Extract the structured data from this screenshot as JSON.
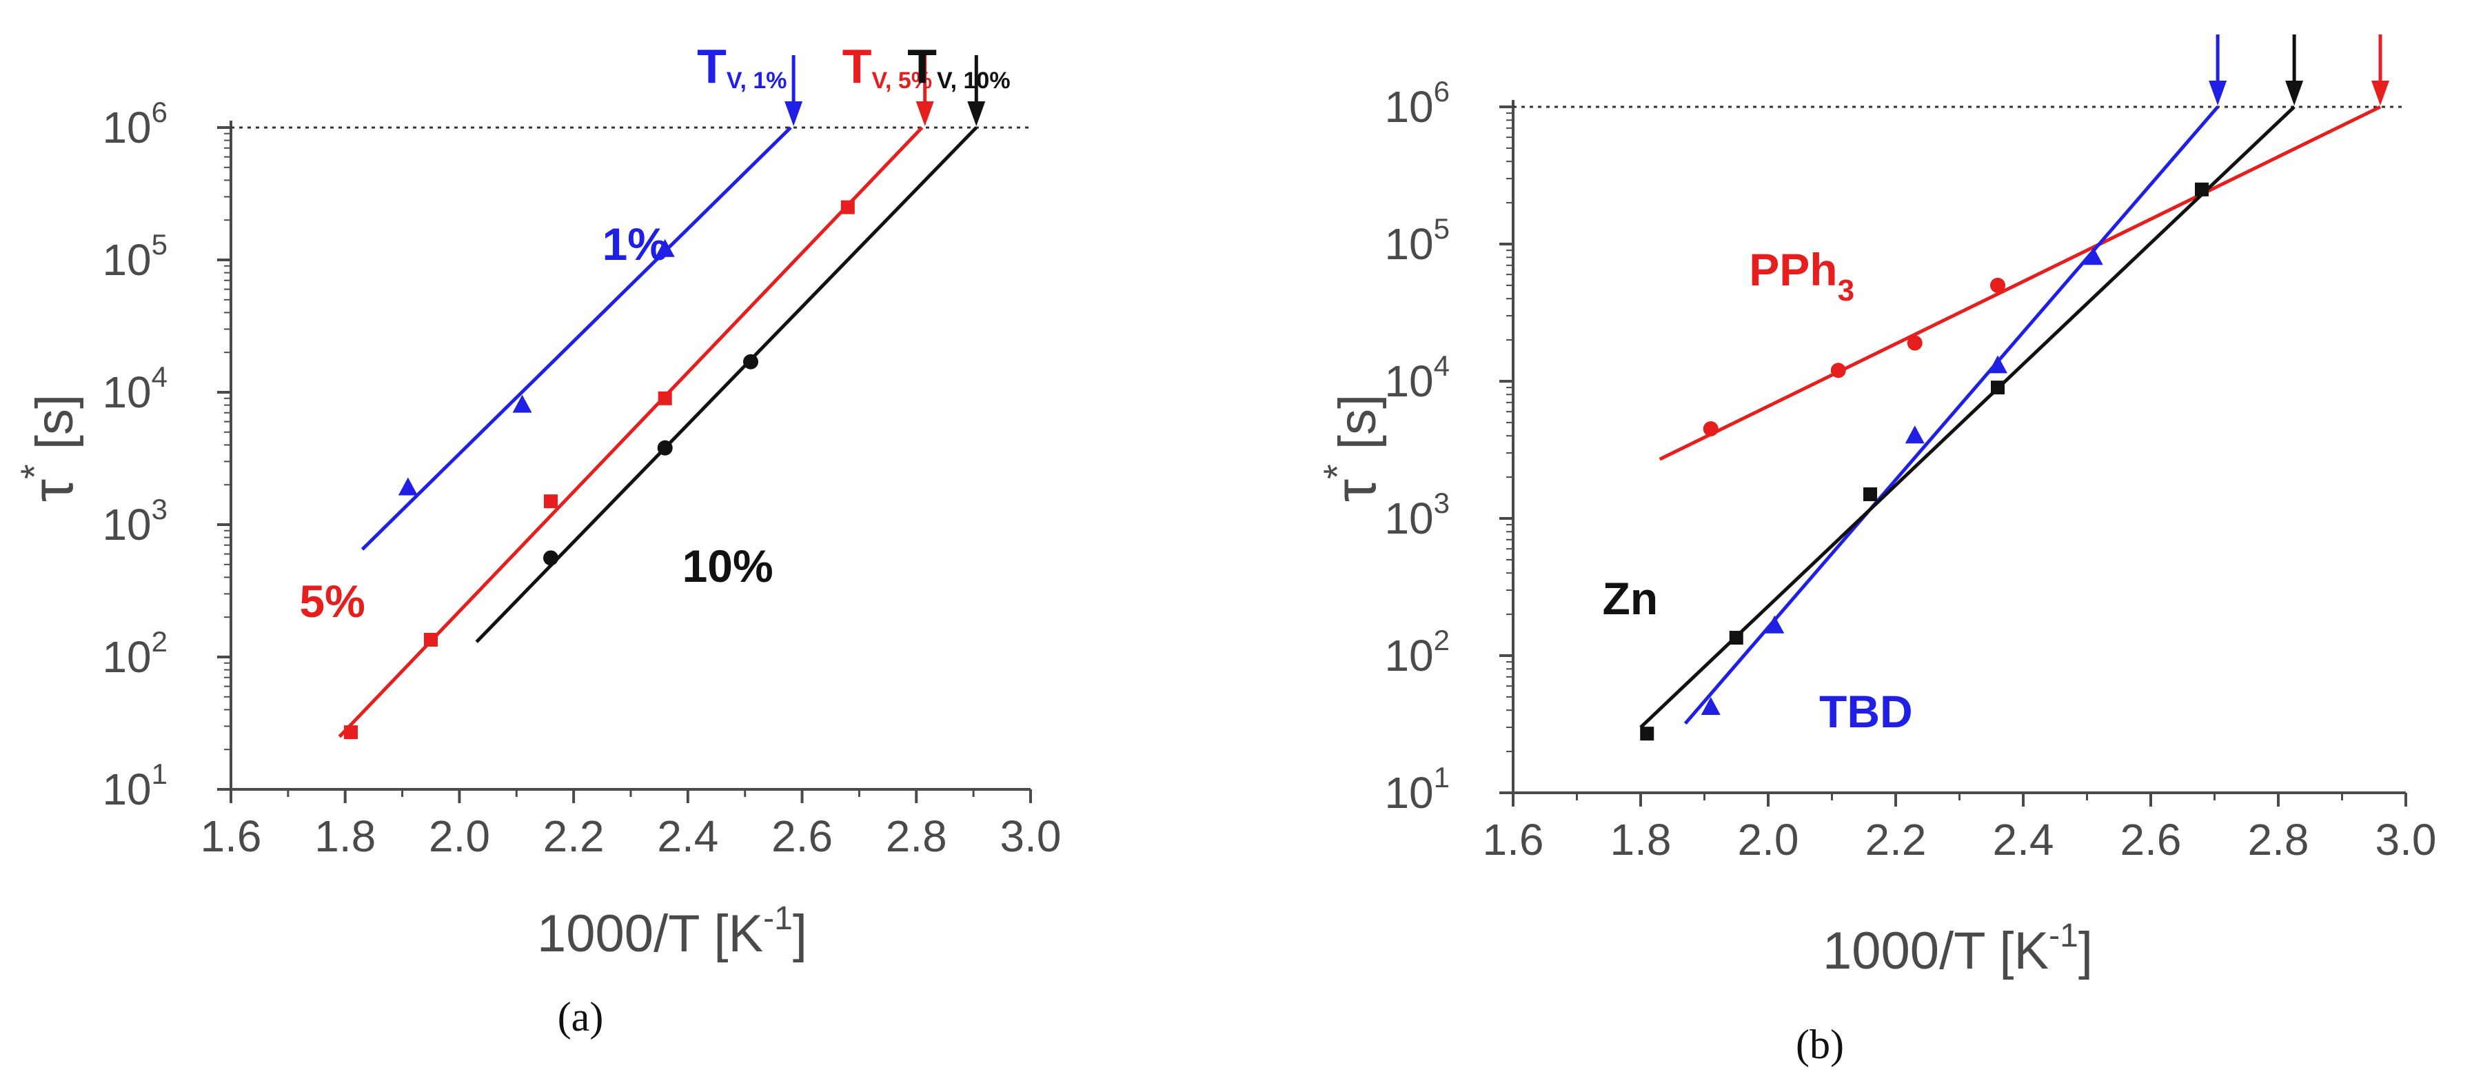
{
  "panels_caption": [
    "(a)",
    "(b)"
  ],
  "colors": {
    "blue": "#1f1fe6",
    "red": "#e61e1e",
    "black": "#111111",
    "axis": "#4a4a4a"
  },
  "chart_data": [
    {
      "type": "scatter",
      "panel": "(a)",
      "xlabel": "1000/T [K",
      "xlabel_sup": "-1",
      "xlabel_end": "]",
      "ylabel_sym": "τ",
      "ylabel_sup": "*",
      "ylabel_unit": "[s]",
      "xlim": [
        1.6,
        3.0
      ],
      "ylim_log10": [
        1,
        6
      ],
      "yscale": "log",
      "x_ticks": [
        "1.6",
        "1.8",
        "2.0",
        "2.2",
        "2.4",
        "2.6",
        "2.8",
        "3.0"
      ],
      "y_ticks": [
        {
          "base": "10",
          "exp": "1"
        },
        {
          "base": "10",
          "exp": "2"
        },
        {
          "base": "10",
          "exp": "3"
        },
        {
          "base": "10",
          "exp": "4"
        },
        {
          "base": "10",
          "exp": "5"
        },
        {
          "base": "10",
          "exp": "6"
        }
      ],
      "reference_line": {
        "y": 1000000,
        "style": "dotted"
      },
      "series": [
        {
          "name": "1%",
          "color": "#1f1fe6",
          "marker": "triangle",
          "points": [
            {
              "x": 1.91,
              "y": 1900
            },
            {
              "x": 2.11,
              "y": 8000
            },
            {
              "x": 2.36,
              "y": 120000
            }
          ],
          "fit": [
            {
              "x": 1.83,
              "y": 650
            },
            {
              "x": 2.58,
              "y": 1000000
            }
          ],
          "arrow_x": 2.585,
          "annotation": {
            "text": "1%",
            "x": 2.25,
            "y": 100000
          },
          "top_label": {
            "main": "T",
            "sub": "V, 1%"
          }
        },
        {
          "name": "5%",
          "color": "#e61e1e",
          "marker": "square",
          "points": [
            {
              "x": 1.81,
              "y": 27
            },
            {
              "x": 1.95,
              "y": 135
            },
            {
              "x": 2.16,
              "y": 1500
            },
            {
              "x": 2.36,
              "y": 9000
            },
            {
              "x": 2.68,
              "y": 250000
            }
          ],
          "fit": [
            {
              "x": 1.79,
              "y": 25
            },
            {
              "x": 2.81,
              "y": 1000000
            }
          ],
          "arrow_x": 2.815,
          "annotation": {
            "text": "5%",
            "x": 1.72,
            "y": 200
          },
          "top_label": {
            "main": "T",
            "sub": "V, 5%"
          }
        },
        {
          "name": "10%",
          "color": "#111111",
          "marker": "circle",
          "points": [
            {
              "x": 2.16,
              "y": 560
            },
            {
              "x": 2.36,
              "y": 3800
            },
            {
              "x": 2.51,
              "y": 17000
            }
          ],
          "fit": [
            {
              "x": 2.03,
              "y": 130
            },
            {
              "x": 2.905,
              "y": 1000000
            }
          ],
          "arrow_x": 2.905,
          "annotation": {
            "text": "10%",
            "x": 2.39,
            "y": 370
          },
          "top_label": {
            "main": "T",
            "sub": "V, 10%"
          }
        }
      ]
    },
    {
      "type": "scatter",
      "panel": "(b)",
      "xlabel": "1000/T [K",
      "xlabel_sup": "-1",
      "xlabel_end": "]",
      "ylabel_sym": "τ",
      "ylabel_sup": "*",
      "ylabel_unit": "[s]",
      "xlim": [
        1.6,
        3.0
      ],
      "ylim_log10": [
        1,
        6
      ],
      "yscale": "log",
      "x_ticks": [
        "1.6",
        "1.8",
        "2.0",
        "2.2",
        "2.4",
        "2.6",
        "2.8",
        "3.0"
      ],
      "y_ticks": [
        {
          "base": "10",
          "exp": "1"
        },
        {
          "base": "10",
          "exp": "2"
        },
        {
          "base": "10",
          "exp": "3"
        },
        {
          "base": "10",
          "exp": "4"
        },
        {
          "base": "10",
          "exp": "5"
        },
        {
          "base": "10",
          "exp": "6"
        }
      ],
      "reference_line": {
        "y": 1000000,
        "style": "dotted"
      },
      "series": [
        {
          "name": "PPh3",
          "color": "#e61e1e",
          "marker": "circle",
          "points": [
            {
              "x": 1.91,
              "y": 4500
            },
            {
              "x": 2.11,
              "y": 12000
            },
            {
              "x": 2.23,
              "y": 19000
            },
            {
              "x": 2.36,
              "y": 50000
            }
          ],
          "fit": [
            {
              "x": 1.83,
              "y": 2700
            },
            {
              "x": 2.96,
              "y": 1000000
            }
          ],
          "arrow_x": 2.96,
          "annotation": {
            "text": "PPh",
            "sub": "3",
            "x": 1.97,
            "y": 50000
          }
        },
        {
          "name": "TBD",
          "color": "#1f1fe6",
          "marker": "triangle",
          "points": [
            {
              "x": 1.91,
              "y": 42
            },
            {
              "x": 2.01,
              "y": 165
            },
            {
              "x": 2.23,
              "y": 4000
            },
            {
              "x": 2.36,
              "y": 13000
            },
            {
              "x": 2.51,
              "y": 80000
            }
          ],
          "fit": [
            {
              "x": 1.87,
              "y": 32
            },
            {
              "x": 2.705,
              "y": 1000000
            }
          ],
          "arrow_x": 2.705,
          "annotation": {
            "text": "TBD",
            "x": 2.08,
            "y": 30
          }
        },
        {
          "name": "Zn",
          "color": "#111111",
          "marker": "square",
          "points": [
            {
              "x": 1.81,
              "y": 27
            },
            {
              "x": 1.95,
              "y": 135
            },
            {
              "x": 2.16,
              "y": 1500
            },
            {
              "x": 2.36,
              "y": 9000
            },
            {
              "x": 2.68,
              "y": 250000
            }
          ],
          "fit": [
            {
              "x": 1.8,
              "y": 30
            },
            {
              "x": 2.825,
              "y": 1000000
            }
          ],
          "arrow_x": 2.825,
          "annotation": {
            "text": "Zn",
            "x": 1.74,
            "y": 200
          }
        }
      ]
    }
  ]
}
